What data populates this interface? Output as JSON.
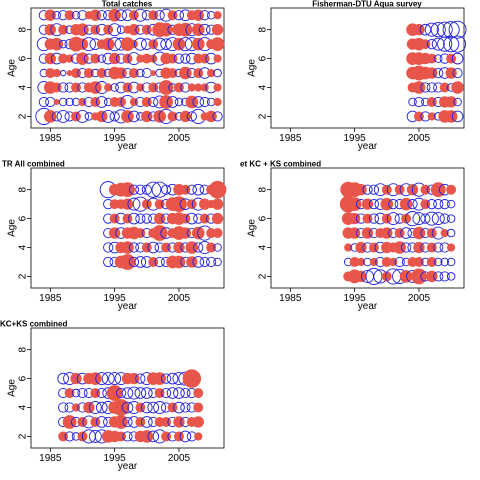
{
  "chart_data": [
    {
      "type": "scatter",
      "title": "Total catches",
      "xlabel": "year",
      "ylabel": "Age",
      "xlim": [
        1982,
        2012
      ],
      "ylim": [
        1.2,
        9.5
      ],
      "xticks": [
        "1985",
        "1995",
        "2005"
      ],
      "yticks": [
        "2",
        "4",
        "6",
        "8"
      ],
      "ages": [
        2,
        3,
        4,
        5,
        6,
        7,
        8,
        9
      ],
      "years": [
        1984,
        1985,
        1986,
        1987,
        1988,
        1989,
        1990,
        1991,
        1992,
        1993,
        1994,
        1995,
        1996,
        1997,
        1998,
        1999,
        2000,
        2001,
        2002,
        2003,
        2004,
        2005,
        2006,
        2007,
        2008,
        2009,
        2010,
        2011
      ],
      "residuals": [
        [
          -0.9,
          0.5,
          -0.3,
          -0.5,
          -0.3,
          0.3,
          -0.5,
          -0.2,
          0.2,
          0.4,
          -0.5,
          -0.3,
          -0.6,
          0.5,
          -0.4,
          -0.2,
          0.4,
          -0.3,
          0.5,
          -0.7,
          0.3,
          -0.2,
          0.4,
          -0.3,
          -0.7,
          0.2,
          0.4,
          -0.3
        ],
        [
          -0.3,
          -0.3,
          0.1,
          -0.2,
          -0.2,
          -0.2,
          0.2,
          -0.3,
          0.3,
          -0.4,
          -0.2,
          0.3,
          0.3,
          -0.6,
          0.2,
          -0.3,
          0.3,
          -0.3,
          -0.5,
          0.6,
          -0.4,
          -0.2,
          -0.2,
          0.5,
          -0.4,
          -0.3,
          -0.2,
          0.2
        ],
        [
          -0.5,
          0.5,
          0.3,
          -0.3,
          -0.3,
          0.3,
          -0.3,
          0.3,
          0.5,
          -0.5,
          0.2,
          -0.2,
          -0.4,
          0.3,
          -0.4,
          0.2,
          -0.3,
          0.3,
          -0.3,
          0.7,
          -0.2,
          0.3,
          -0.3,
          0.2,
          0.2,
          0.2,
          -0.4,
          0.2
        ],
        [
          -0.2,
          0.3,
          0.2,
          -0.1,
          0.1,
          0.3,
          -0.3,
          0.3,
          -0.2,
          0.3,
          -0.2,
          0.5,
          0.4,
          -0.3,
          0.3,
          -0.2,
          -0.3,
          0.1,
          -0.2,
          0.4,
          0.3,
          -0.2,
          0.5,
          -0.3,
          0.3,
          -0.4,
          0.2,
          -0.2
        ],
        [
          -0.3,
          0.4,
          -0.4,
          0.3,
          0.2,
          -0.3,
          0.5,
          -0.3,
          0.3,
          -0.2,
          -0.4,
          0.4,
          -0.3,
          0.3,
          -0.5,
          0.2,
          0.3,
          0.2,
          -0.6,
          0.4,
          0.3,
          -0.3,
          -0.3,
          -0.4,
          0.3,
          0.3,
          -0.4,
          0.2
        ],
        [
          -0.6,
          0.4,
          0.5,
          -0.2,
          -0.3,
          0.7,
          0.4,
          -0.6,
          -0.4,
          0.3,
          0.5,
          -0.6,
          -0.5,
          0.6,
          0.2,
          -0.5,
          -0.4,
          0.3,
          -0.5,
          -0.4,
          -0.6,
          0.5,
          -0.6,
          -0.6,
          0.5,
          -0.6,
          0.3,
          0.6
        ],
        [
          -0.3,
          0.4,
          -0.5,
          0.3,
          -0.2,
          0.4,
          0.5,
          -0.3,
          0.3,
          -0.4,
          0.3,
          -0.5,
          -0.2,
          0.2,
          0.4,
          -0.3,
          0.3,
          -0.4,
          0.7,
          0.6,
          -0.3,
          0.5,
          0.6,
          -0.5,
          0.5,
          -0.4,
          -0.3,
          0.4
        ],
        [
          -0.3,
          0.4,
          -0.2,
          -0.3,
          0.3,
          -0.2,
          -0.3,
          0.2,
          0.4,
          -0.3,
          -0.3,
          0.5,
          -0.4,
          -0.4,
          0.3,
          -0.5,
          -0.3,
          0.3,
          -0.3,
          -0.5,
          0.3,
          -0.3,
          -0.4,
          0.3,
          0.4,
          -0.3,
          -0.2,
          0.2
        ]
      ]
    },
    {
      "type": "scatter",
      "title": "Fisherman-DTU Aqua survey",
      "xlabel": "year",
      "ylabel": "Age",
      "xlim": [
        1982,
        2012
      ],
      "ylim": [
        1.2,
        9.5
      ],
      "xticks": [
        "1985",
        "1995",
        "2005"
      ],
      "yticks": [
        "2",
        "4",
        "6",
        "8"
      ],
      "ages": [
        2,
        3,
        4,
        5,
        6,
        7,
        8
      ],
      "years": [
        2004,
        2005,
        2006,
        2007,
        2008,
        2009,
        2010,
        2011
      ],
      "residuals": [
        [
          -0.4,
          0.3,
          -0.3,
          0.2,
          -0.2,
          0.5,
          0.5,
          -0.4
        ],
        [
          -0.2,
          -0.3,
          -0.2,
          0.3,
          -0.3,
          0.4,
          0.4,
          -0.2
        ],
        [
          0.3,
          0.5,
          -0.3,
          -0.3,
          -0.3,
          0.3,
          -0.2,
          0.5
        ],
        [
          0.5,
          0.7,
          0.5,
          0.4,
          -0.3,
          -0.4,
          0.4,
          -0.3
        ],
        [
          0.5,
          0.5,
          0.4,
          0.3,
          -0.2,
          -0.3,
          0.3,
          -0.4
        ],
        [
          0.4,
          0.5,
          0.3,
          -0.3,
          -0.5,
          -0.7,
          -0.8,
          -0.9
        ],
        [
          0.5,
          0.4,
          -0.4,
          -0.6,
          -0.7,
          -0.8,
          -0.9,
          -1.0
        ]
      ]
    },
    {
      "type": "scatter",
      "title": "TR All combined",
      "xlabel": "year",
      "ylabel": "Age",
      "xlim": [
        1982,
        2012
      ],
      "ylim": [
        1.2,
        9.5
      ],
      "xticks": [
        "1985",
        "1995",
        "2005"
      ],
      "yticks": [
        "2",
        "4",
        "6",
        "8"
      ],
      "ages": [
        3,
        4,
        5,
        6,
        7,
        8
      ],
      "years": [
        1994,
        1995,
        1996,
        1997,
        1998,
        1999,
        2000,
        2001,
        2002,
        2003,
        2004,
        2005,
        2006,
        2007,
        2008,
        2009,
        2010,
        2011
      ],
      "residuals": [
        [
          -0.3,
          -0.3,
          0.5,
          0.8,
          -0.3,
          -0.4,
          -0.4,
          0.3,
          -0.3,
          -0.3,
          0.5,
          0.5,
          -0.3,
          0.4,
          -0.4,
          -0.3,
          -0.3,
          -0.2
        ],
        [
          -0.3,
          -0.4,
          0.4,
          0.5,
          -0.3,
          -0.3,
          0.3,
          -0.4,
          -0.3,
          0.3,
          -0.3,
          0.4,
          -0.3,
          0.5,
          -0.3,
          -0.5,
          0.3,
          -0.2
        ],
        [
          -0.3,
          0.4,
          -0.4,
          0.4,
          0.5,
          0.3,
          -0.3,
          0.3,
          0.8,
          -0.4,
          0.3,
          0.6,
          0.4,
          -0.3,
          0.5,
          -0.7,
          0.3,
          0.3
        ],
        [
          -0.3,
          0.3,
          -0.4,
          0.3,
          -0.4,
          -0.3,
          -0.3,
          -0.3,
          0.4,
          -0.3,
          0.4,
          0.5,
          0.3,
          -0.4,
          -0.3,
          0.3,
          -0.3,
          0.4
        ],
        [
          -0.3,
          0.3,
          0.3,
          0.4,
          -0.5,
          -0.7,
          0.3,
          -0.5,
          0.3,
          -0.3,
          0.6,
          0.8,
          -0.4,
          0.3,
          -0.5,
          0.4,
          0.2,
          0.4
        ],
        [
          -0.9,
          0.4,
          0.6,
          0.7,
          -0.3,
          -0.3,
          -0.3,
          -0.8,
          -0.8,
          -0.3,
          -0.4,
          0.4,
          0.3,
          -0.3,
          -0.4,
          -0.3,
          0.3,
          1.0
        ]
      ]
    },
    {
      "type": "scatter",
      "title": "et KC + KS combined",
      "xlabel": "year",
      "ylabel": "Age",
      "xlim": [
        1982,
        2012
      ],
      "ylim": [
        1.2,
        9.5
      ],
      "xticks": [
        "1985",
        "1995",
        "2005"
      ],
      "yticks": [
        "2",
        "4",
        "6",
        "8"
      ],
      "ages": [
        2,
        3,
        4,
        5,
        6,
        7,
        8
      ],
      "years": [
        1994,
        1995,
        1996,
        1997,
        1998,
        1999,
        2000,
        2001,
        2002,
        2003,
        2004,
        2005,
        2006,
        2007,
        2008,
        2009,
        2010
      ],
      "residuals": [
        [
          0.3,
          0.6,
          0.4,
          -0.5,
          -0.9,
          -0.6,
          0.3,
          -0.8,
          -0.7,
          0.5,
          -0.5,
          0.8,
          -0.3,
          0.4,
          -0.3,
          -0.3,
          -0.2
        ],
        [
          -0.2,
          0.3,
          0.2,
          -0.2,
          0.2,
          -0.3,
          0.3,
          0.2,
          -0.3,
          -0.2,
          0.3,
          0.3,
          -0.2,
          0.3,
          -0.2,
          -0.2,
          -0.2
        ],
        [
          0.2,
          -0.2,
          0.4,
          -0.3,
          0.3,
          -0.4,
          0.4,
          0.3,
          0.5,
          -0.3,
          -0.3,
          0.4,
          -0.3,
          0.3,
          -0.3,
          -0.3,
          0.2
        ],
        [
          0.4,
          0.4,
          -0.3,
          0.4,
          -0.3,
          0.3,
          0.4,
          -0.3,
          0.3,
          -0.4,
          -0.3,
          0.5,
          -0.3,
          0.3,
          -0.5,
          0.2,
          -0.2
        ],
        [
          0.5,
          0.4,
          -0.3,
          0.3,
          -0.3,
          -0.4,
          0.3,
          -0.5,
          -0.3,
          0.3,
          -0.7,
          -0.5,
          -0.3,
          -0.6,
          -0.5,
          -0.3,
          -0.2
        ],
        [
          0.9,
          0.6,
          -0.3,
          0.4,
          -0.3,
          -0.4,
          0.5,
          -0.3,
          -0.3,
          0.5,
          -0.3,
          -0.5,
          0.3,
          -0.3,
          -0.3,
          -0.3,
          -0.2
        ],
        [
          0.8,
          0.7,
          0.4,
          -0.3,
          -0.3,
          -0.5,
          0.3,
          -0.5,
          0.3,
          -0.5,
          0.4,
          -0.6,
          0.3,
          -0.3,
          0.7,
          -0.4,
          0.3
        ]
      ]
    },
    {
      "type": "scatter",
      "title": "KC+KS combined",
      "xlabel": "year",
      "ylabel": "Age",
      "xlim": [
        1982,
        2012
      ],
      "ylim": [
        1.2,
        9.5
      ],
      "xticks": [
        "1985",
        "1995",
        "2005"
      ],
      "yticks": [
        "2",
        "4",
        "6",
        "8"
      ],
      "ages": [
        2,
        3,
        4,
        5,
        6
      ],
      "years": [
        1987,
        1988,
        1989,
        1990,
        1991,
        1992,
        1993,
        1994,
        1995,
        1996,
        1997,
        1998,
        1999,
        2000,
        2001,
        2002,
        2003,
        2004,
        2005,
        2006,
        2007,
        2008
      ],
      "residuals": [
        [
          0.3,
          -0.3,
          -0.2,
          0.3,
          -0.6,
          -0.5,
          -0.6,
          0.5,
          0.4,
          0.3,
          -0.3,
          -0.3,
          0.4,
          0.5,
          -0.4,
          -0.6,
          0.3,
          -0.3,
          0.3,
          -0.4,
          -0.3,
          0.2
        ],
        [
          -0.3,
          0.6,
          -0.3,
          0.3,
          -0.5,
          0.3,
          -0.4,
          -0.3,
          0.4,
          0.6,
          -0.3,
          -0.4,
          0.3,
          -0.4,
          -0.3,
          0.3,
          0.3,
          -0.3,
          0.4,
          -0.3,
          0.3,
          0.4
        ],
        [
          -0.3,
          -0.3,
          0.2,
          -0.3,
          0.4,
          -0.5,
          -0.4,
          -0.5,
          0.5,
          0.9,
          -0.4,
          -0.5,
          0.3,
          -0.4,
          -0.4,
          -0.5,
          -0.3,
          0.3,
          -0.4,
          -0.3,
          -0.3,
          0.3
        ],
        [
          -0.3,
          0.3,
          -0.2,
          -0.3,
          -0.3,
          0.3,
          -0.3,
          -0.4,
          0.8,
          -0.3,
          -0.4,
          -0.5,
          -0.4,
          -0.4,
          -0.3,
          0.3,
          -0.3,
          -0.4,
          -0.4,
          -0.3,
          -0.3,
          0.3
        ],
        [
          -0.4,
          -0.5,
          0.4,
          -0.4,
          0.4,
          0.5,
          -0.5,
          -0.5,
          -0.5,
          -0.5,
          0.4,
          0.4,
          -0.3,
          -0.5,
          0.5,
          0.5,
          -0.3,
          -0.4,
          -0.5,
          -0.6,
          1.1,
          0.0
        ]
      ]
    }
  ],
  "colors": {
    "positive": "#e8564b",
    "negative": "#1f1fdc"
  }
}
